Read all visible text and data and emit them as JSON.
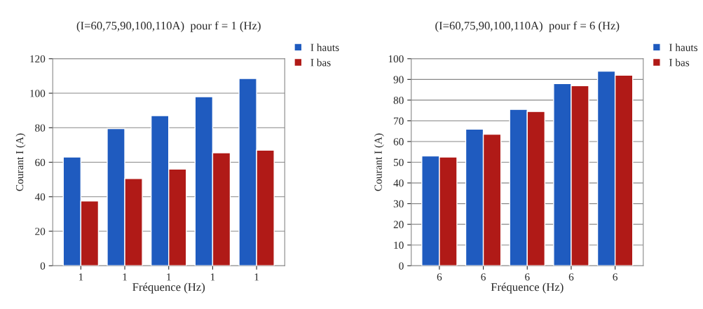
{
  "chart_data": [
    {
      "type": "bar",
      "title": "(I=60,75,90,100,110A)  pour f = 1 (Hz)",
      "xlabel": "Fréquence (Hz)",
      "ylabel": "Courant I (A)",
      "categories": [
        "1",
        "1",
        "1",
        "1",
        "1"
      ],
      "series": [
        {
          "name": "I hauts",
          "color": "#1f5bbf",
          "values": [
            63,
            79.5,
            87,
            98,
            108.5
          ]
        },
        {
          "name": "I bas",
          "color": "#b01a17",
          "values": [
            37.5,
            50.5,
            56,
            65.5,
            67
          ]
        }
      ],
      "ylim": [
        0,
        120
      ],
      "yticks": [
        0,
        20,
        40,
        60,
        80,
        100,
        120
      ],
      "grid": "y",
      "legend": "top right"
    },
    {
      "type": "bar",
      "title": "(I=60,75,90,100,110A)  pour f = 6 (Hz)",
      "xlabel": "Fréquence (Hz)",
      "ylabel": "Courant I (A)",
      "categories": [
        "6",
        "6",
        "6",
        "6",
        "6"
      ],
      "series": [
        {
          "name": "I hauts",
          "color": "#1f5bbf",
          "values": [
            53,
            66,
            75.5,
            88,
            94
          ]
        },
        {
          "name": "I bas",
          "color": "#b01a17",
          "values": [
            52.5,
            63.5,
            74.5,
            87,
            92
          ]
        }
      ],
      "ylim": [
        0,
        100
      ],
      "yticks": [
        0,
        10,
        20,
        30,
        40,
        50,
        60,
        70,
        80,
        90,
        100
      ],
      "grid": "y",
      "legend": "top right"
    }
  ]
}
